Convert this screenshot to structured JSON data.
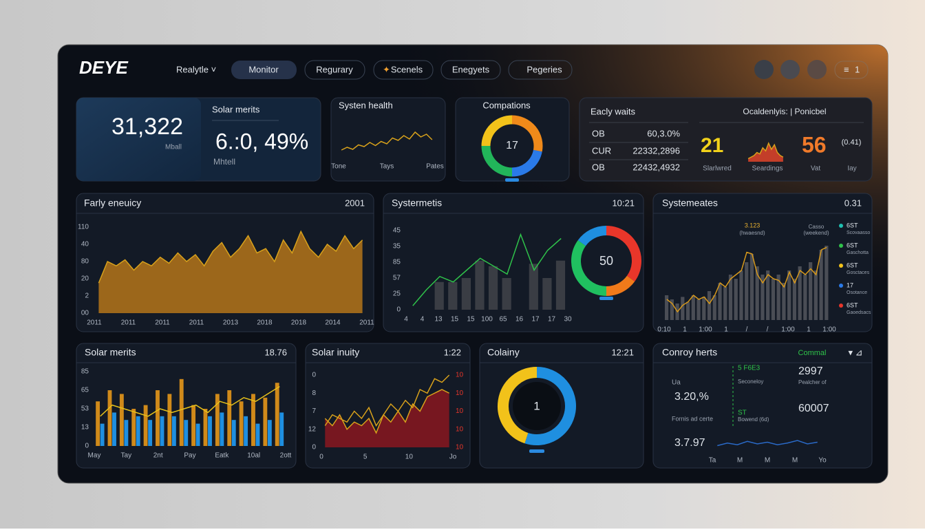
{
  "header": {
    "logo": "DEYE",
    "tabs": [
      "Realytle ˅",
      "Monitor",
      "Regurary",
      "Scenels",
      "Enegyets",
      "Pegeries"
    ],
    "menu_badge": "1"
  },
  "kpi": {
    "value": "31,322",
    "caption": "Mball",
    "title": "Solar merits",
    "metric": "6.:0, 49%",
    "metric_caption": "Mhtell"
  },
  "health": {
    "title": "Systen health",
    "chart": {
      "type": "line",
      "ylim": [
        0,
        100
      ],
      "series": [
        {
          "style": "line",
          "color": "#d9a21b",
          "values": [
            20,
            28,
            22,
            35,
            30,
            42,
            33,
            45,
            38,
            55,
            48,
            62,
            52,
            72,
            58,
            66,
            50
          ]
        }
      ],
      "x_labels": [
        "Tone",
        "Tays",
        "Pates"
      ]
    }
  },
  "compations": {
    "title": "Compations",
    "center": "17",
    "chart": {
      "type": "donut",
      "values": [
        28,
        22,
        25,
        25
      ],
      "colors": [
        "#f08a1a",
        "#2a7ae8",
        "#22b55a",
        "#f2c21a"
      ]
    }
  },
  "waits": {
    "title": "Eacly waits",
    "rows": [
      [
        "OB",
        "60,3.0%"
      ],
      [
        "CUR",
        "22332,2896"
      ],
      [
        "OB",
        "22432,4932"
      ]
    ],
    "subtitle": "Ocaldenlyis: | Ponicbel",
    "stat1": "21",
    "stat1_label": "Slarlwred",
    "spark_label": "Seardings",
    "stat2": "56",
    "stat2_label": "Vat",
    "note": "(0.41)",
    "note_label": "Iay",
    "spark": {
      "type": "line",
      "ylim": [
        0,
        100
      ],
      "series": [
        {
          "style": "area",
          "color": "#e0442a",
          "values": [
            10,
            15,
            20,
            30,
            25,
            45,
            35,
            60,
            40,
            55,
            30,
            20,
            15
          ]
        }
      ]
    }
  },
  "energy": {
    "title": "Farly eneuicy",
    "badge": "2001",
    "chart": {
      "type": "area",
      "ylim": [
        0,
        100
      ],
      "series": [
        {
          "style": "area",
          "color": "#b5761a",
          "values": [
            35,
            60,
            55,
            62,
            50,
            60,
            55,
            65,
            58,
            70,
            60,
            68,
            55,
            72,
            82,
            65,
            75,
            90,
            70,
            75,
            60,
            85,
            70,
            95,
            75,
            65,
            80,
            72,
            90,
            75,
            85
          ]
        }
      ],
      "y_labels": [
        "110",
        "40",
        "80",
        "20",
        "2",
        "00"
      ],
      "x_labels": [
        "2011",
        "2011",
        "2011",
        "2011",
        "2013",
        "2018",
        "2018",
        "2014",
        "2011"
      ]
    }
  },
  "systemetis": {
    "title": "Systermetis",
    "badge": "10:21",
    "chart": {
      "type": "combo",
      "ylim": [
        0,
        100
      ],
      "series": [
        {
          "style": "bar",
          "color": "#3a3d44",
          "values": [
            null,
            null,
            35,
            35,
            40,
            62,
            55,
            40,
            null,
            58,
            40,
            62
          ]
        },
        {
          "style": "line",
          "color": "#2fc24a",
          "values": [
            5,
            25,
            42,
            35,
            50,
            65,
            55,
            45,
            95,
            50,
            75,
            90
          ]
        }
      ],
      "y_labels": [
        "45",
        "35",
        "85",
        "57",
        "25",
        "0"
      ],
      "x_labels": [
        "4",
        "4",
        "13",
        "15",
        "15",
        "100",
        "65",
        "16",
        "17",
        "17",
        "30"
      ]
    },
    "center": "50",
    "donut": {
      "type": "donut",
      "values": [
        35,
        15,
        35,
        15
      ],
      "colors": [
        "#e8362a",
        "#f07a1a",
        "#20c060",
        "#1f8fe0"
      ]
    }
  },
  "states": {
    "title": "Systemeates",
    "badge": "0.31",
    "annotations": [
      "3.123",
      "(hwaesnd)",
      "Casso",
      "(weekend)"
    ],
    "legend": [
      {
        "name": "6ST",
        "sub": "Scovaasso",
        "color": "#1fc0b0"
      },
      {
        "name": "6ST",
        "sub": "Gaschotta",
        "color": "#2fc24a"
      },
      {
        "name": "6ST",
        "sub": "Gosctaces",
        "color": "#f2c21a"
      },
      {
        "name": "17",
        "sub": "Osotance",
        "color": "#2a7ae8"
      },
      {
        "name": "6ST",
        "sub": "Gaoedsacs",
        "color": "#e8362a"
      }
    ],
    "chart": {
      "type": "combo",
      "ylim": [
        0,
        100
      ],
      "series": [
        {
          "style": "bar",
          "color": "#4a4d55",
          "values": [
            30,
            25,
            20,
            28,
            22,
            30,
            25,
            28,
            35,
            30,
            45,
            40,
            55,
            50,
            60,
            70,
            80,
            65,
            55,
            60,
            50,
            55,
            45,
            60,
            50,
            65,
            55,
            70,
            60,
            85,
            90
          ]
        },
        {
          "style": "line",
          "color": "#d99a1b",
          "values": [
            25,
            20,
            10,
            18,
            22,
            30,
            25,
            28,
            20,
            30,
            45,
            40,
            50,
            55,
            60,
            82,
            80,
            55,
            45,
            55,
            50,
            48,
            40,
            58,
            45,
            60,
            55,
            62,
            55,
            85,
            88
          ]
        }
      ],
      "x_labels": [
        "0:10",
        "1",
        "1:00",
        "1",
        "/",
        "/",
        "1:00",
        "1",
        "1:00"
      ]
    }
  },
  "solar": {
    "title": "Solar merits",
    "badge": "18.76",
    "chart": {
      "type": "combo",
      "ylim": [
        0,
        100
      ],
      "series": [
        {
          "style": "bar",
          "color": "#d08a1a",
          "values": [
            60,
            75,
            70,
            50,
            55,
            75,
            70,
            90,
            55,
            50,
            70,
            75,
            60,
            70,
            65,
            85
          ]
        },
        {
          "style": "bar",
          "color": "#1f8fe0",
          "values": [
            30,
            45,
            35,
            40,
            35,
            40,
            40,
            35,
            30,
            40,
            45,
            35,
            40,
            30,
            35,
            45
          ]
        },
        {
          "style": "line",
          "color": "#e8c21a",
          "values": [
            40,
            55,
            50,
            45,
            40,
            50,
            45,
            50,
            55,
            45,
            60,
            55,
            65,
            60,
            70,
            80
          ]
        }
      ],
      "y_labels": [
        "85",
        "65",
        "53",
        "13",
        "0"
      ],
      "x_labels": [
        "May",
        "Tay",
        "2nt",
        "Pay",
        "Eatk",
        "10al",
        "2ott"
      ]
    }
  },
  "inuity": {
    "title": "Solar inuity",
    "badge": "1:22",
    "chart": {
      "type": "combo",
      "ylim": [
        0,
        100
      ],
      "series": [
        {
          "style": "area",
          "color": "#8a1820",
          "values": [
            40,
            30,
            45,
            25,
            35,
            30,
            40,
            20,
            45,
            35,
            50,
            35,
            60,
            50,
            70,
            75,
            80,
            75
          ]
        },
        {
          "style": "line",
          "color": "#d9a21b",
          "values": [
            30,
            45,
            40,
            35,
            50,
            40,
            55,
            30,
            45,
            60,
            50,
            65,
            55,
            80,
            75,
            95,
            90,
            100
          ]
        }
      ],
      "y_labels": [
        "0",
        "8",
        "7",
        "12",
        "0"
      ],
      "y2_labels": [
        "10",
        "10",
        "10",
        "10",
        "10"
      ],
      "x_labels": [
        "0",
        "5",
        "10",
        "Jo"
      ]
    }
  },
  "colainy": {
    "title": "Colainy",
    "badge": "12:21",
    "center": "1",
    "chart": {
      "type": "donut",
      "values": [
        55,
        45
      ],
      "colors": [
        "#1f8fe0",
        "#f2c21a"
      ]
    }
  },
  "conroy": {
    "title": "Conroy herts",
    "tag": "Commal",
    "ua": "Ua",
    "value1": "3.20,%",
    "label1": "Fornis ad certe",
    "value2": "3.7.97",
    "code": "5 F6E3",
    "code_sub": "Seconeloy",
    "value3": "2997",
    "value3_sub": "Pealcher of",
    "st": "ST",
    "st_sub": "Bowend (6d)",
    "value4": "60007",
    "chart": {
      "type": "line",
      "ylim": [
        0,
        100
      ],
      "series": [
        {
          "style": "line",
          "color": "#2a6ac8",
          "values": [
            30,
            45,
            35,
            55,
            40,
            50,
            35,
            45,
            60,
            40,
            50
          ]
        }
      ],
      "x_labels": [
        "Ta",
        "M",
        "M",
        "M",
        "Yo"
      ]
    }
  }
}
